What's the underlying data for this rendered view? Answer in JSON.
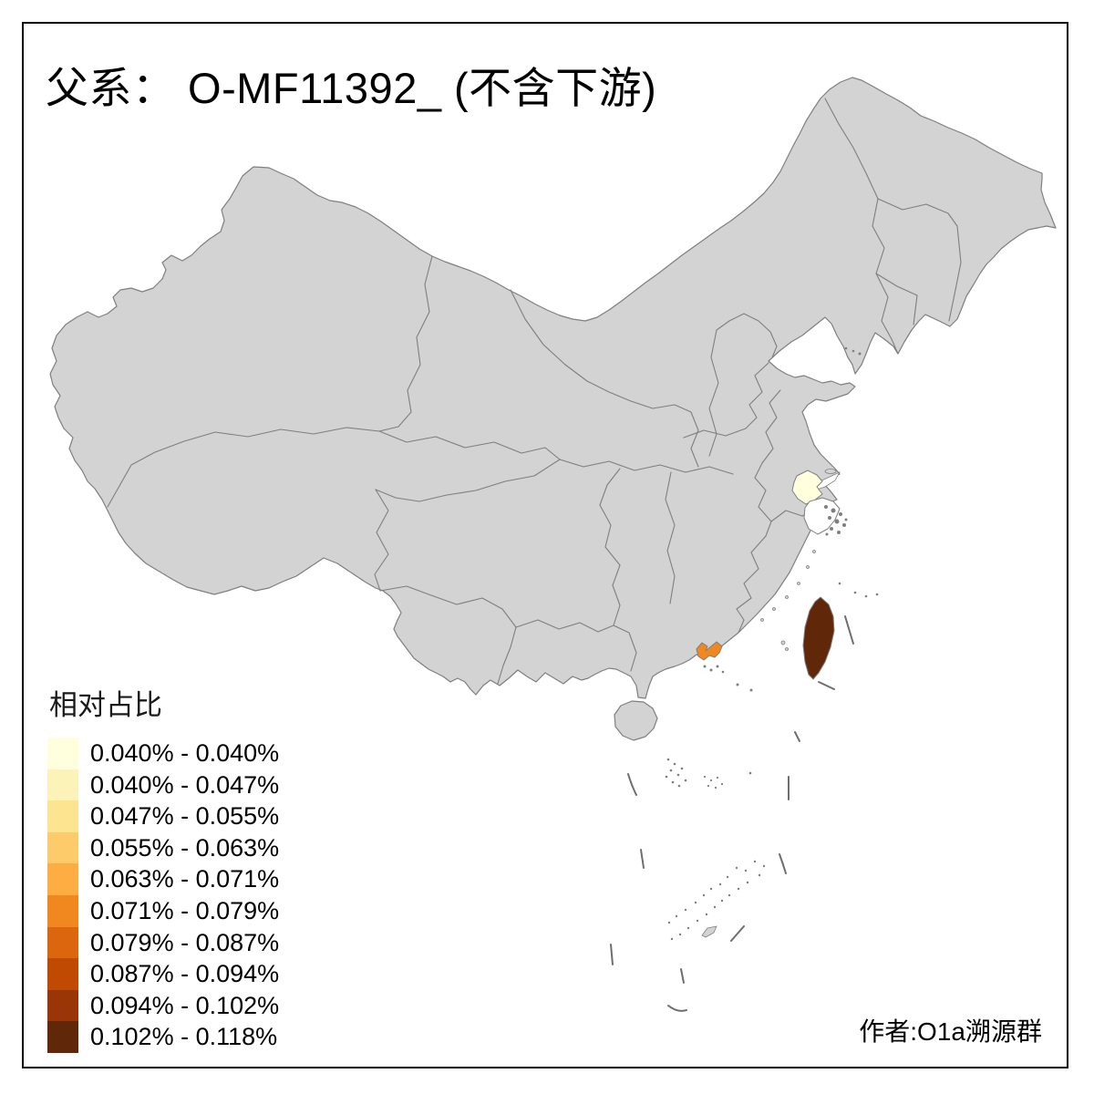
{
  "title": "父系： O-MF11392_ (不含下游)",
  "legend": {
    "title": "相对占比",
    "items": [
      {
        "label": "0.040% - 0.040%",
        "color": "#FFFFDE"
      },
      {
        "label": "0.040% - 0.047%",
        "color": "#FCF3B8"
      },
      {
        "label": "0.047% - 0.055%",
        "color": "#FDE491"
      },
      {
        "label": "0.055% - 0.063%",
        "color": "#FDCB69"
      },
      {
        "label": "0.063% - 0.071%",
        "color": "#FDAD42"
      },
      {
        "label": "0.071% - 0.079%",
        "color": "#F0881F"
      },
      {
        "label": "0.079% - 0.087%",
        "color": "#DC660D"
      },
      {
        "label": "0.087% - 0.094%",
        "color": "#C04A02"
      },
      {
        "label": "0.094% - 0.102%",
        "color": "#993507"
      },
      {
        "label": "0.102% - 0.118%",
        "color": "#602708"
      }
    ]
  },
  "attribution": "作者:O1a溯源群",
  "map": {
    "land_color": "#D3D3D3",
    "border_color": "#7F7F7F",
    "sea_color": "#FFFFFF",
    "highlighted_regions": [
      {
        "name": "taiwan",
        "legend_bracket": "0.102% - 0.118%",
        "color": "#602708"
      },
      {
        "name": "jiangsu-suzhou-area",
        "legend_bracket": "0.040% - 0.040%",
        "color": "#FFFFDE"
      },
      {
        "name": "guangdong-pearl-river-area",
        "legend_bracket": "0.071% - 0.079%",
        "color": "#F0881F"
      },
      {
        "name": "shanghai-area",
        "legend_bracket": "",
        "color": "#FFFFFF"
      }
    ]
  }
}
